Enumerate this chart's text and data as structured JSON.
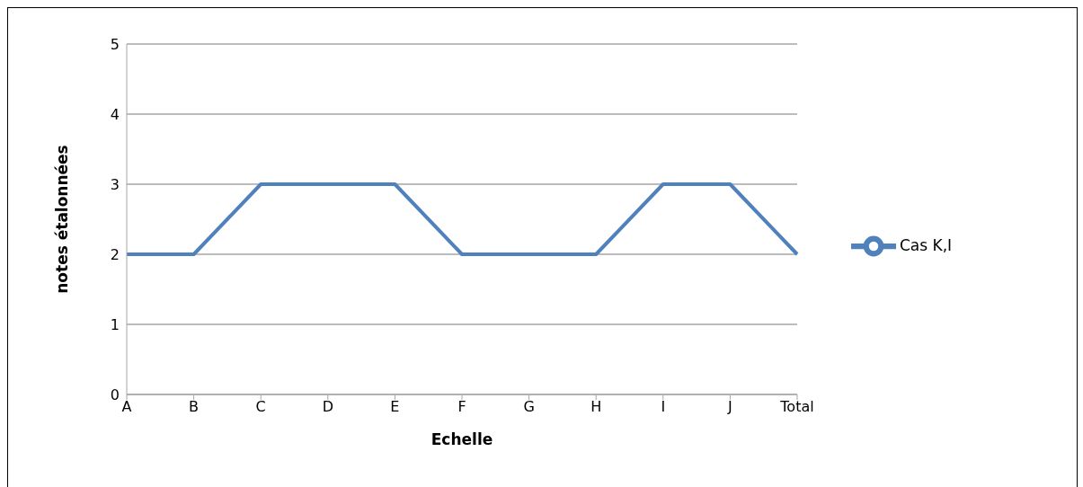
{
  "chart_data": {
    "type": "line",
    "xlabel": "Echelle",
    "ylabel": "notes étalonnées",
    "categories": [
      "A",
      "B",
      "C",
      "D",
      "E",
      "F",
      "G",
      "H",
      "I",
      "J",
      "Total"
    ],
    "series": [
      {
        "name": "Cas K,I",
        "color": "#4f81bd",
        "values": [
          2,
          2,
          3,
          3,
          3,
          2,
          2,
          2,
          3,
          3,
          2
        ]
      }
    ],
    "ylim": [
      0,
      5
    ],
    "yticks": [
      0,
      1,
      2,
      3,
      4,
      5
    ],
    "grid": "y",
    "legend": "right",
    "marker": "none",
    "line_style": "solid"
  }
}
